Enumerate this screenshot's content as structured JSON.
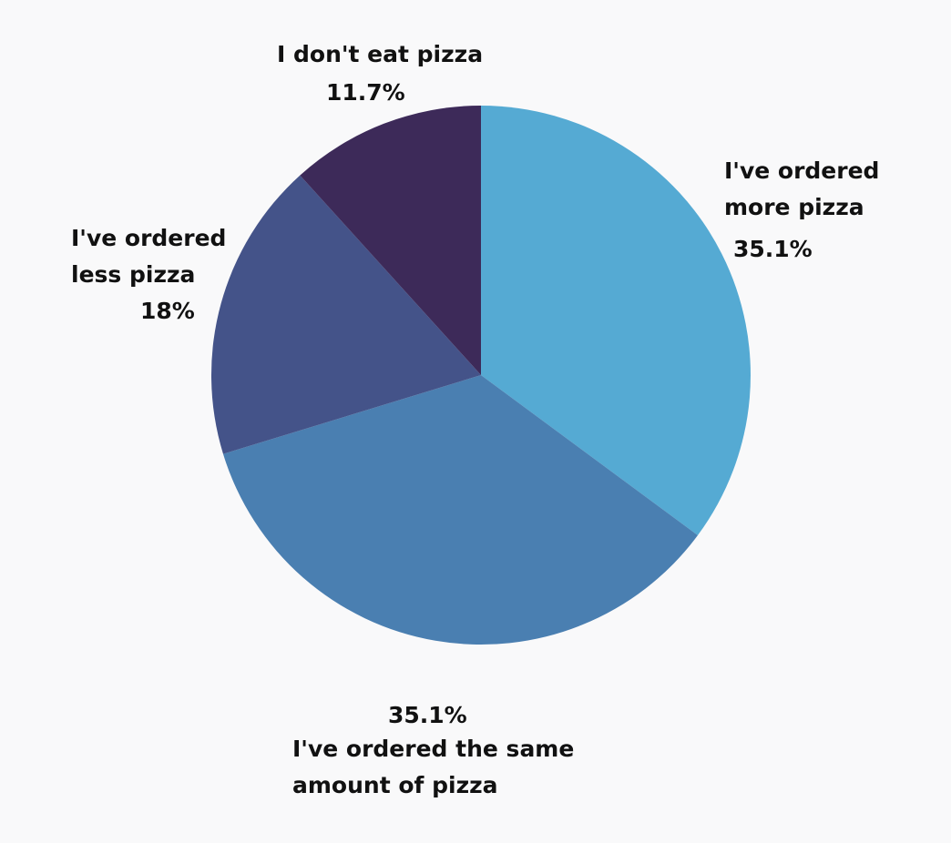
{
  "chart_data": {
    "type": "pie",
    "title": "",
    "slices": [
      {
        "label_lines": [
          "I've ordered",
          "more pizza"
        ],
        "value": 35.1,
        "display": "35.1%",
        "color": "#55aad3"
      },
      {
        "label_lines": [
          "I've ordered the same",
          "amount of pizza"
        ],
        "value": 35.1,
        "display": "35.1%",
        "color": "#4a7fb1"
      },
      {
        "label_lines": [
          "I've ordered",
          "less pizza"
        ],
        "value": 18,
        "display": "18%",
        "color": "#445389"
      },
      {
        "label_lines": [
          "I don't eat pizza"
        ],
        "value": 11.7,
        "display": "11.7%",
        "color": "#3d2a59"
      }
    ],
    "start": "12 o'clock",
    "direction": "clockwise",
    "legend": "none (direct labels)"
  }
}
